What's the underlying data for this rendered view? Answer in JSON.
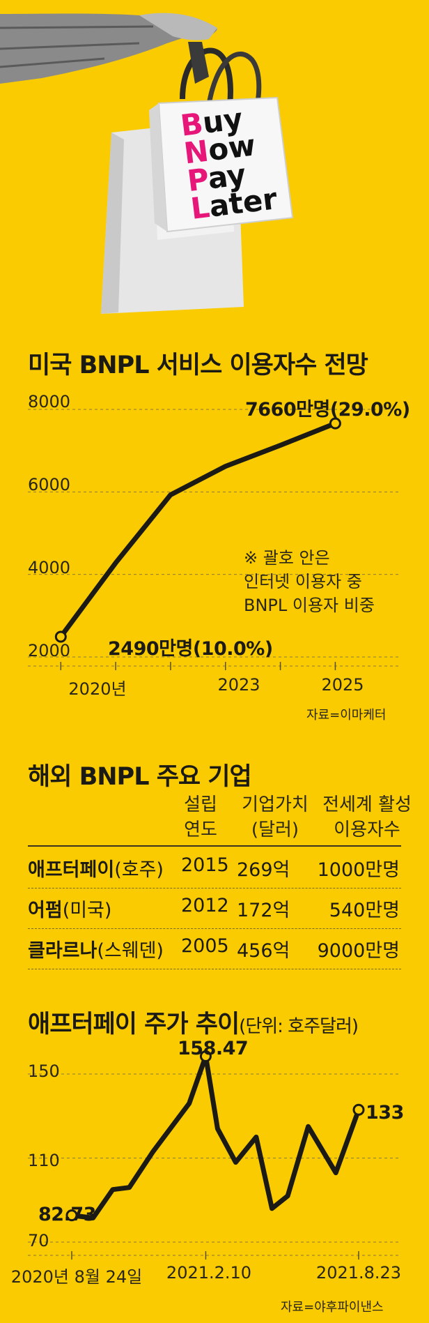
{
  "hero": {
    "bag_lines": [
      {
        "cap": "B",
        "rest": "uy"
      },
      {
        "cap": "N",
        "rest": "ow"
      },
      {
        "cap": "P",
        "rest": "ay"
      },
      {
        "cap": "L",
        "rest": "ater"
      }
    ],
    "colors": {
      "background": "#F9CB00",
      "bnpl_caps": "#E7177A",
      "ink": "#1c1a14"
    }
  },
  "section1": {
    "title": "미국 BNPL 서비스 이용자수 전망",
    "note_lines": [
      "※ 괄호 안은",
      "인터넷 이용자 중",
      "BNPL 이용자 비중"
    ],
    "source": "자료=이마케터"
  },
  "section2": {
    "title": "해외 BNPL 주요 기업",
    "headers": [
      {
        "line1": "설립",
        "line2": "연도"
      },
      {
        "line1": "기업가치",
        "line2": "(달러)"
      },
      {
        "line1": "전세계 활성",
        "line2": "이용자수"
      }
    ],
    "rows": [
      {
        "company": "애프터페이",
        "country": "(호주)",
        "year": "2015",
        "value": "269억",
        "users": "1000만명"
      },
      {
        "company": "어펌",
        "country": "(미국)",
        "year": "2012",
        "value": "172억",
        "users": "540만명"
      },
      {
        "company": "클라르나",
        "country": "(스웨덴)",
        "year": "2005",
        "value": "456억",
        "users": "9000만명"
      }
    ]
  },
  "section3": {
    "title": "애프터페이 주가 추이",
    "unit": "(단위: 호주달러)",
    "source": "자료=야후파이낸스"
  },
  "chart_data": [
    {
      "type": "line",
      "title": "미국 BNPL 서비스 이용자수 전망",
      "x": [
        2020,
        2021,
        2022,
        2023,
        2024,
        2025
      ],
      "values": [
        2490,
        4280,
        5930,
        6620,
        7130,
        7660
      ],
      "x_tick_labels": [
        {
          "x": 2020,
          "label": "2020년"
        },
        {
          "x": 2023,
          "label": "2023"
        },
        {
          "x": 2025,
          "label": "2025"
        }
      ],
      "y_ticks": [
        2000,
        4000,
        6000,
        8000
      ],
      "ylim": [
        2000,
        8000
      ],
      "xlim": [
        2019.4,
        2026.2
      ],
      "grid": "horizontal dashed",
      "annotations": [
        {
          "x": 2020,
          "y": 2490,
          "label": "2490만명(10.0%)"
        },
        {
          "x": 2025,
          "y": 7660,
          "label": "7660만명(29.0%)"
        }
      ]
    },
    {
      "type": "line",
      "title": "애프터페이 주가 추이",
      "x": [
        "2020-08-24",
        "2020-09-20",
        "2020-10-15",
        "2020-11-05",
        "2020-12-05",
        "2021-01-20",
        "2021-02-10",
        "2021-02-25",
        "2021-03-20",
        "2021-04-15",
        "2021-05-05",
        "2021-05-25",
        "2021-06-20",
        "2021-07-25",
        "2021-08-23"
      ],
      "values": [
        82.73,
        81.5,
        95,
        96,
        113,
        136,
        158.47,
        124,
        108,
        120,
        86,
        92,
        125,
        103,
        133
      ],
      "x_tick_labels": [
        {
          "x": "2020-08-24",
          "label": "2020년 8월 24일"
        },
        {
          "x": "2021-02-10",
          "label": "2021.2.10"
        },
        {
          "x": "2021-08-23",
          "label": "2021.8.23"
        }
      ],
      "y_ticks": [
        70,
        110,
        150
      ],
      "ylim": [
        70,
        160
      ],
      "grid": "horizontal dashed",
      "annotations": [
        {
          "x": "2020-08-24",
          "y": 82.73,
          "label": "82.73"
        },
        {
          "x": "2021-02-10",
          "y": 158.47,
          "label": "158.47"
        },
        {
          "x": "2021-08-23",
          "y": 133,
          "label": "133"
        }
      ]
    }
  ]
}
